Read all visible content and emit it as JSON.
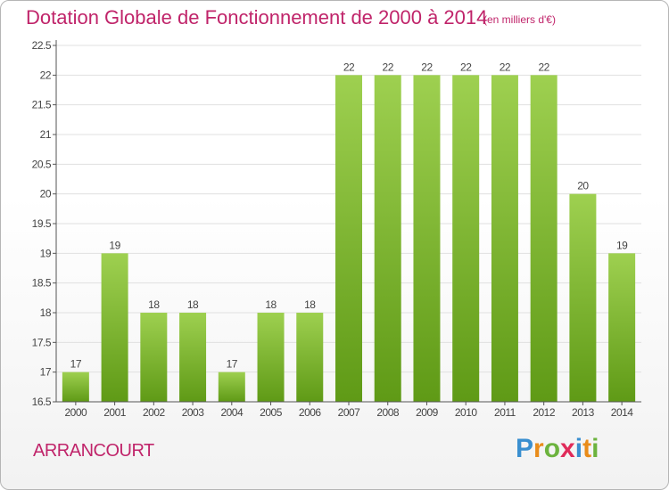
{
  "title": "Dotation Globale de Fonctionnement de 2000 à 2014",
  "unit": "(en milliers d'€)",
  "commune": "ARRANCOURT",
  "logo": {
    "text": "Proxiti",
    "letters": [
      {
        "ch": "P",
        "color": "#3a8fd0"
      },
      {
        "ch": "r",
        "color": "#e98c1a"
      },
      {
        "ch": "o",
        "color": "#6cb33e"
      },
      {
        "ch": "x",
        "color": "#e02b5a"
      },
      {
        "ch": "i",
        "color": "#3a8fd0"
      },
      {
        "ch": "t",
        "color": "#e98c1a"
      },
      {
        "ch": "i",
        "color": "#6cb33e"
      }
    ]
  },
  "colors": {
    "title": "#c0246a",
    "bar_top": "#9ed050",
    "bar_bottom": "#5f9a16",
    "axis": "#555555",
    "grid": "#e0e0e0"
  },
  "chart_data": {
    "type": "bar",
    "categories": [
      "2000",
      "2001",
      "2002",
      "2003",
      "2004",
      "2005",
      "2006",
      "2007",
      "2008",
      "2009",
      "2010",
      "2011",
      "2012",
      "2013",
      "2014"
    ],
    "values": [
      17,
      19,
      18,
      18,
      17,
      18,
      18,
      22,
      22,
      22,
      22,
      22,
      22,
      20,
      19
    ],
    "data_labels": [
      "17",
      "19",
      "18",
      "18",
      "17",
      "18",
      "18",
      "22",
      "22",
      "22",
      "22",
      "22",
      "22",
      "20",
      "19"
    ],
    "ylim": [
      16.5,
      22.5
    ],
    "yticks": [
      16.5,
      17,
      17.5,
      18,
      18.5,
      19,
      19.5,
      20,
      20.5,
      21,
      21.5,
      22,
      22.5
    ],
    "ytick_labels": [
      "16.5",
      "17",
      "17.5",
      "18",
      "18.5",
      "19",
      "19.5",
      "20",
      "20.5",
      "21",
      "21.5",
      "22",
      "22.5"
    ],
    "grid": true
  }
}
